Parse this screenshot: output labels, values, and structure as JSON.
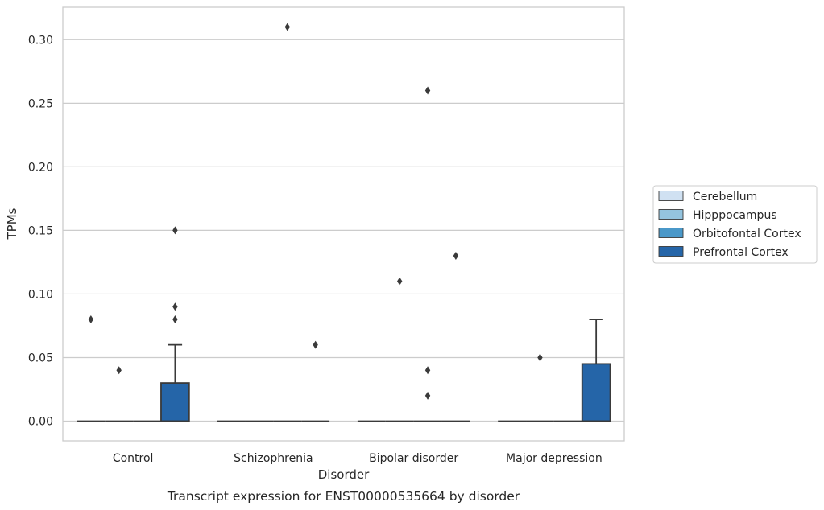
{
  "chart_data": {
    "type": "box",
    "categories": [
      "Control",
      "Schizophrenia",
      "Bipolar disorder",
      "Major depression"
    ],
    "xlabel": "Disorder",
    "ylabel": "TPMs",
    "caption": "Transcript expression for ENST00000535664 by disorder",
    "ylim": [
      -0.0155,
      0.3255
    ],
    "yticks": [
      "0.00",
      "0.05",
      "0.10",
      "0.15",
      "0.20",
      "0.25",
      "0.30"
    ],
    "grid": true,
    "legend_position": "right",
    "series": [
      {
        "name": "Cerebellum",
        "color": "#d0e1f2",
        "boxes": [
          {
            "q1": 0,
            "median": 0,
            "q3": 0,
            "whisker_low": 0,
            "whisker_high": 0,
            "outliers": [
              0.08
            ]
          },
          {
            "q1": 0,
            "median": 0,
            "q3": 0,
            "whisker_low": 0,
            "whisker_high": 0,
            "outliers": []
          },
          {
            "q1": 0,
            "median": 0,
            "q3": 0,
            "whisker_low": 0,
            "whisker_high": 0,
            "outliers": []
          },
          {
            "q1": 0,
            "median": 0,
            "q3": 0,
            "whisker_low": 0,
            "whisker_high": 0,
            "outliers": []
          }
        ]
      },
      {
        "name": "Hipppocampus",
        "color": "#94c4df",
        "boxes": [
          {
            "q1": 0,
            "median": 0,
            "q3": 0,
            "whisker_low": 0,
            "whisker_high": 0,
            "outliers": [
              0.04
            ]
          },
          {
            "q1": 0,
            "median": 0,
            "q3": 0,
            "whisker_low": 0,
            "whisker_high": 0,
            "outliers": []
          },
          {
            "q1": 0,
            "median": 0,
            "q3": 0,
            "whisker_low": 0,
            "whisker_high": 0,
            "outliers": [
              0.11
            ]
          },
          {
            "q1": 0,
            "median": 0,
            "q3": 0,
            "whisker_low": 0,
            "whisker_high": 0,
            "outliers": [
              0.05
            ]
          }
        ]
      },
      {
        "name": "Orbitofontal Cortex",
        "color": "#4a98c9",
        "boxes": [
          {
            "q1": 0,
            "median": 0,
            "q3": 0,
            "whisker_low": 0,
            "whisker_high": 0,
            "outliers": []
          },
          {
            "q1": 0,
            "median": 0,
            "q3": 0,
            "whisker_low": 0,
            "whisker_high": 0,
            "outliers": [
              0.31
            ]
          },
          {
            "q1": 0,
            "median": 0,
            "q3": 0,
            "whisker_low": 0,
            "whisker_high": 0,
            "outliers": [
              0.26,
              0.04,
              0.02
            ]
          },
          {
            "q1": 0,
            "median": 0,
            "q3": 0,
            "whisker_low": 0,
            "whisker_high": 0,
            "outliers": []
          }
        ]
      },
      {
        "name": "Prefrontal Cortex",
        "color": "#2565a8",
        "boxes": [
          {
            "q1": 0,
            "median": 0,
            "q3": 0.03,
            "whisker_low": 0,
            "whisker_high": 0.06,
            "outliers": [
              0.15,
              0.09,
              0.08
            ]
          },
          {
            "q1": 0,
            "median": 0,
            "q3": 0,
            "whisker_low": 0,
            "whisker_high": 0,
            "outliers": [
              0.06
            ]
          },
          {
            "q1": 0,
            "median": 0,
            "q3": 0,
            "whisker_low": 0,
            "whisker_high": 0,
            "outliers": [
              0.13
            ]
          },
          {
            "q1": 0,
            "median": 0,
            "q3": 0.045,
            "whisker_low": 0,
            "whisker_high": 0.08,
            "outliers": []
          }
        ]
      }
    ]
  },
  "colors": {
    "grid": "#cccccc",
    "frame": "#cccccc",
    "line": "#3a3a3a"
  }
}
